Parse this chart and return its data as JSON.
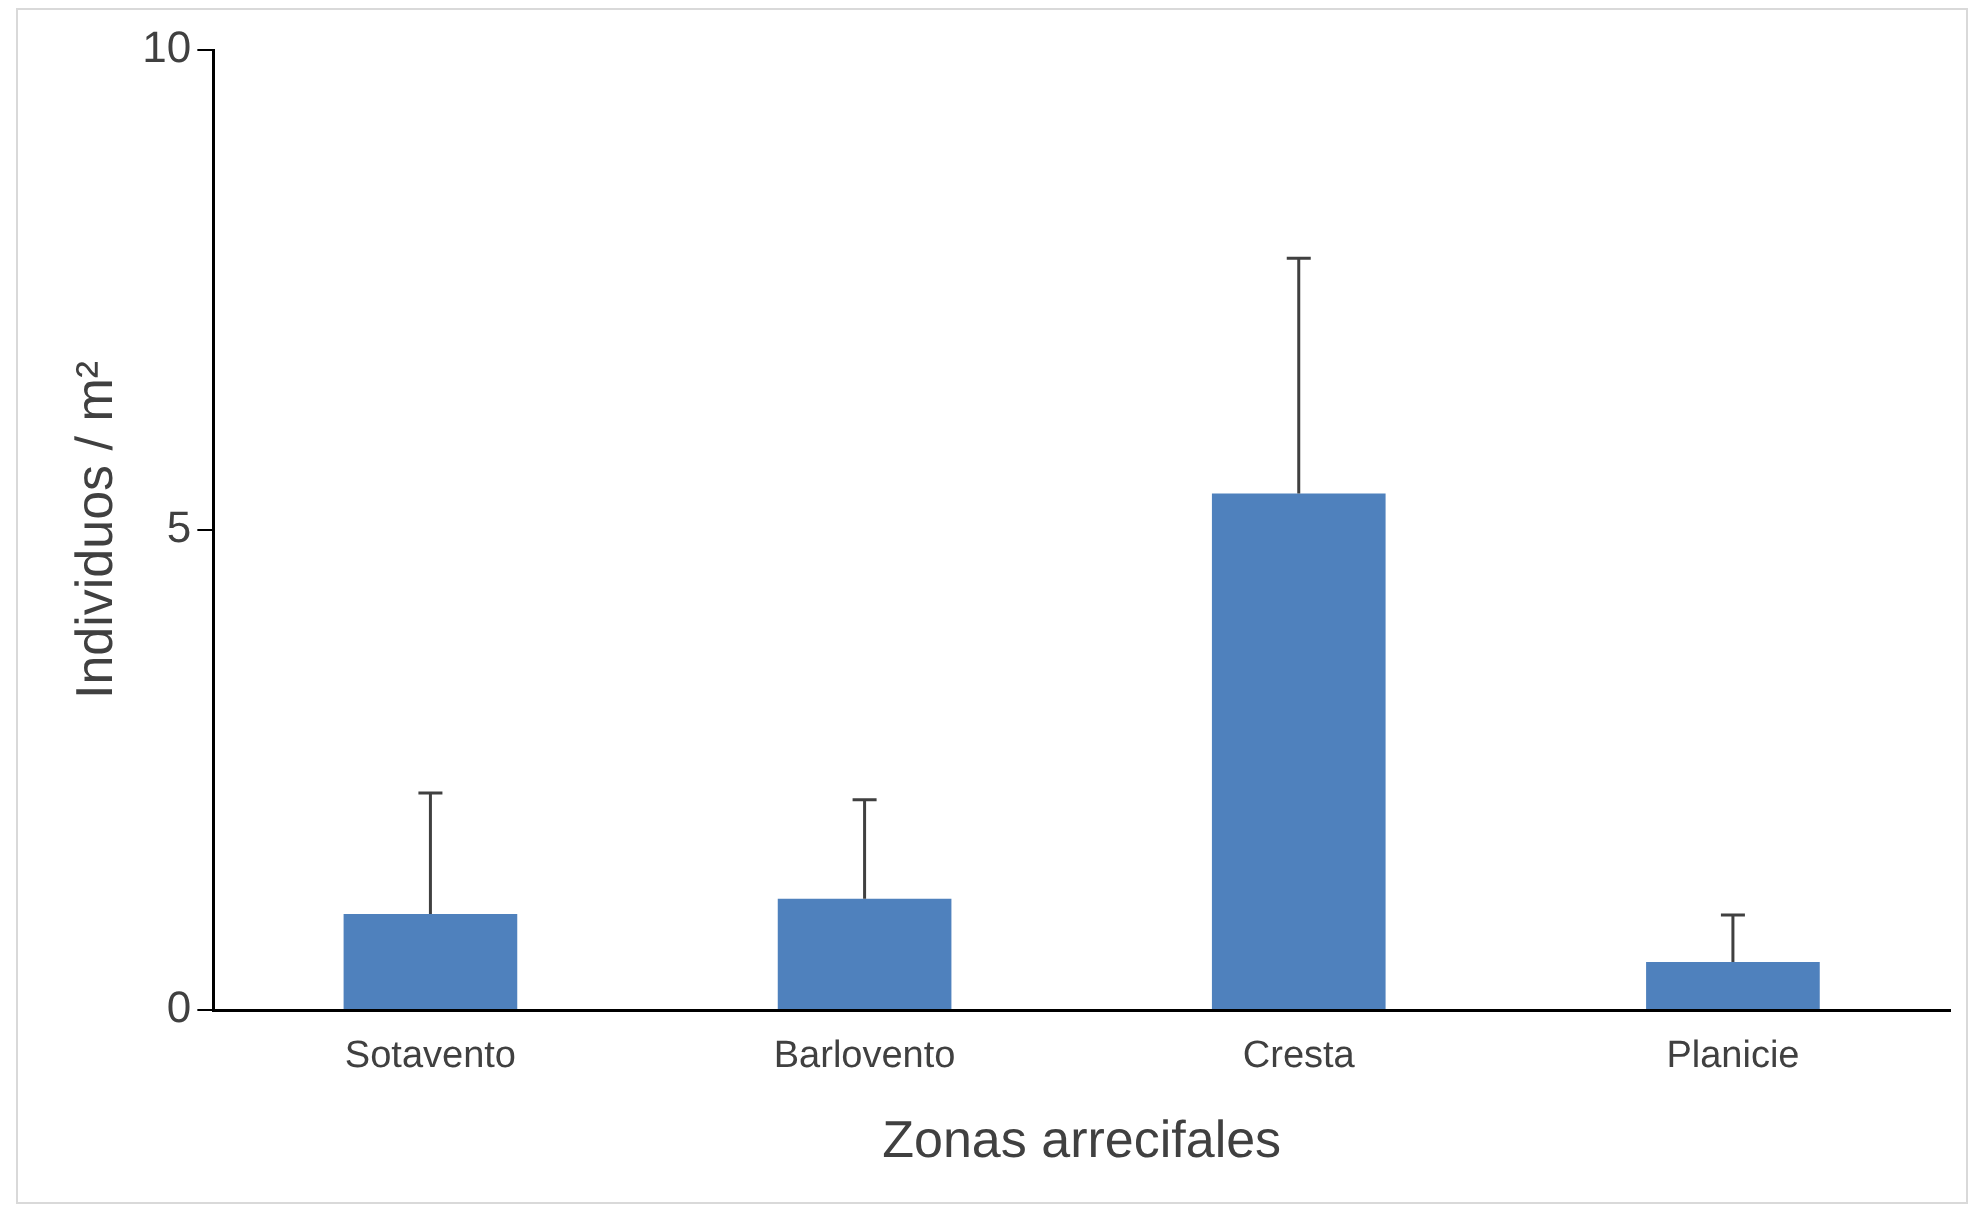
{
  "chart_data": {
    "type": "bar",
    "xlabel": "Zonas arrecifales",
    "ylabel": "Individuos / m²",
    "categories": [
      "Sotavento",
      "Barlovento",
      "Cresta",
      "Planicie"
    ],
    "values": [
      1.0,
      1.16,
      5.38,
      0.5
    ],
    "errors": [
      [
        1.0,
        2.26
      ],
      [
        1.16,
        2.19
      ],
      [
        5.38,
        7.83
      ],
      [
        0.5,
        0.99
      ]
    ],
    "color": "#4f81bd",
    "ylim": [
      0,
      10
    ],
    "yticks": [
      0,
      5,
      10
    ],
    "grid": false,
    "legend": false
  }
}
